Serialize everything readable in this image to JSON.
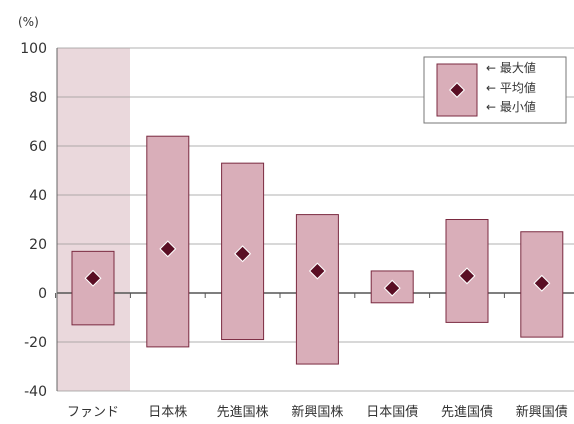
{
  "chart_data": {
    "type": "range-bar",
    "unit_label": "(%)",
    "ylim": [
      -40,
      100
    ],
    "yticks": [
      100,
      80,
      60,
      40,
      20,
      0,
      -20,
      -40
    ],
    "grid": true,
    "categories": [
      "ファンド",
      "日本株",
      "先進国株",
      "新興国株",
      "日本国債",
      "先進国債",
      "新興国債"
    ],
    "max": [
      17,
      64,
      53,
      32,
      9,
      30,
      25
    ],
    "mean": [
      6,
      18,
      16,
      9,
      2,
      7,
      4
    ],
    "min": [
      -13,
      -22,
      -19,
      -29,
      -4,
      -12,
      -18
    ],
    "highlight_category": "ファンド",
    "legend": {
      "position": "top-right",
      "entries": [
        "← 最大値",
        "← 平均値",
        "← 最小値"
      ]
    },
    "colors": {
      "bar_fill": "#d9aeb9",
      "bar_stroke": "#7a2a40",
      "marker_fill": "#5a0e24",
      "highlight_bg": "#ead8dc",
      "grid": "#999999"
    }
  }
}
